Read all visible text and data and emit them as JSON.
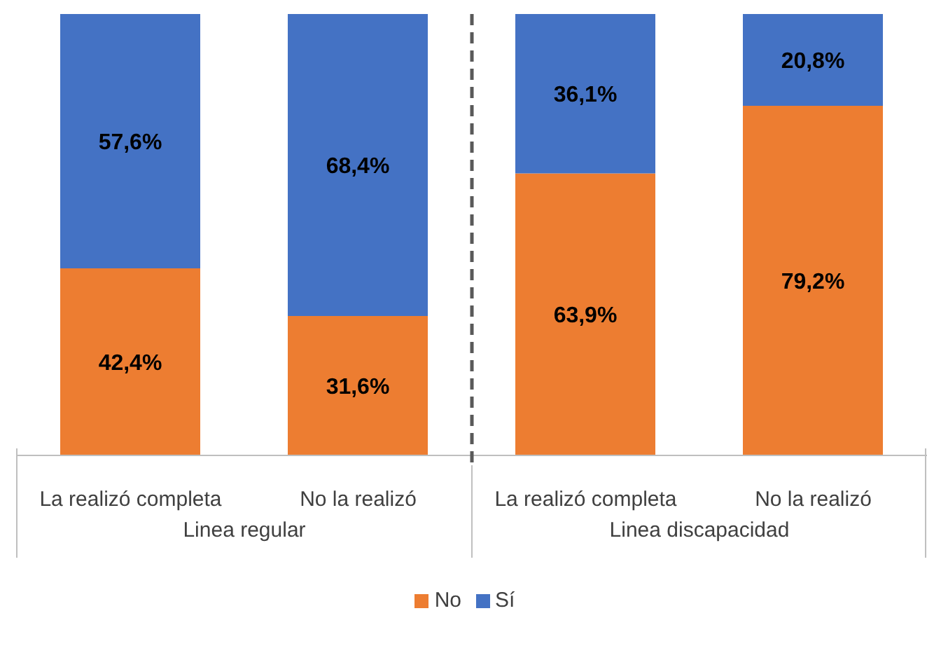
{
  "chart_data": {
    "type": "bar",
    "stacked": true,
    "data_labels": true,
    "legend": "bottom",
    "categories": [
      "La realizó completa",
      "No la realizó",
      "La realizó completa",
      "No la realizó"
    ],
    "series": [
      {
        "name": "No",
        "color": "#ed7d31",
        "values": [
          42.4,
          31.6,
          63.9,
          79.2
        ],
        "value_labels": [
          "42,4%",
          "31,6%",
          "63,9%",
          "79,2%"
        ]
      },
      {
        "name": "Sí",
        "color": "#4472c4",
        "values": [
          57.6,
          68.4,
          36.1,
          20.8
        ],
        "value_labels": [
          "57,6%",
          "68,4%",
          "36,1%",
          "20,8%"
        ]
      }
    ],
    "annotations": [
      "Linea regular",
      "Linea discapacidad"
    ]
  }
}
